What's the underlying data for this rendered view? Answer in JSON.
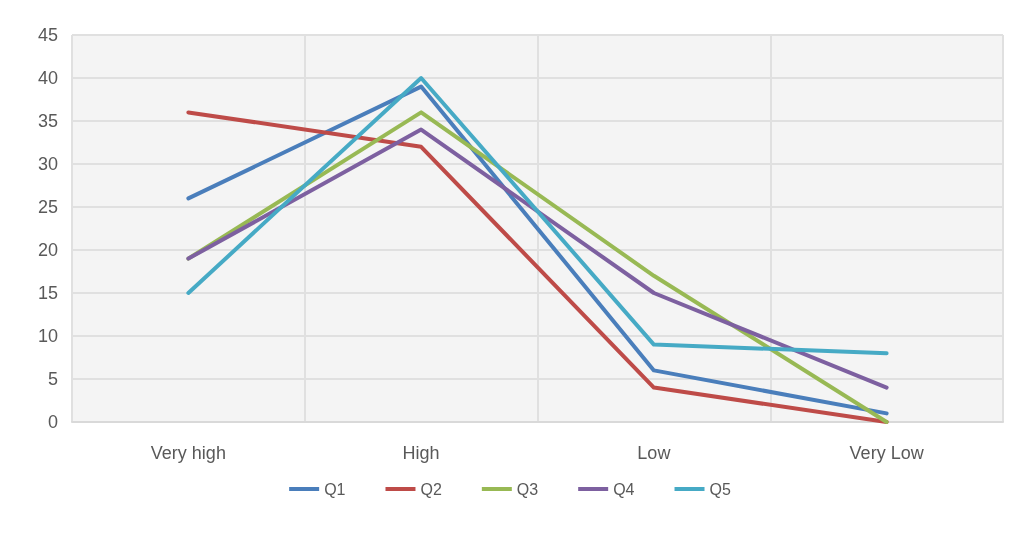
{
  "chart_data": {
    "type": "line",
    "categories": [
      "Very high",
      "High",
      "Low",
      "Very Low"
    ],
    "series": [
      {
        "name": "Q1",
        "color": "#4a7ebb",
        "values": [
          26,
          39,
          6,
          1
        ]
      },
      {
        "name": "Q2",
        "color": "#be4b48",
        "values": [
          36,
          32,
          4,
          0
        ]
      },
      {
        "name": "Q3",
        "color": "#98b954",
        "values": [
          19,
          36,
          17,
          0
        ]
      },
      {
        "name": "Q4",
        "color": "#7d60a0",
        "values": [
          19,
          34,
          15,
          4
        ]
      },
      {
        "name": "Q5",
        "color": "#46aac5",
        "values": [
          15,
          40,
          9,
          8
        ]
      }
    ],
    "ylim": [
      0,
      45
    ],
    "yticks": [
      0,
      5,
      10,
      15,
      20,
      25,
      30,
      35,
      40,
      45
    ],
    "grid": true,
    "legend": "bottom",
    "marker": "none",
    "line_style": "solid"
  }
}
